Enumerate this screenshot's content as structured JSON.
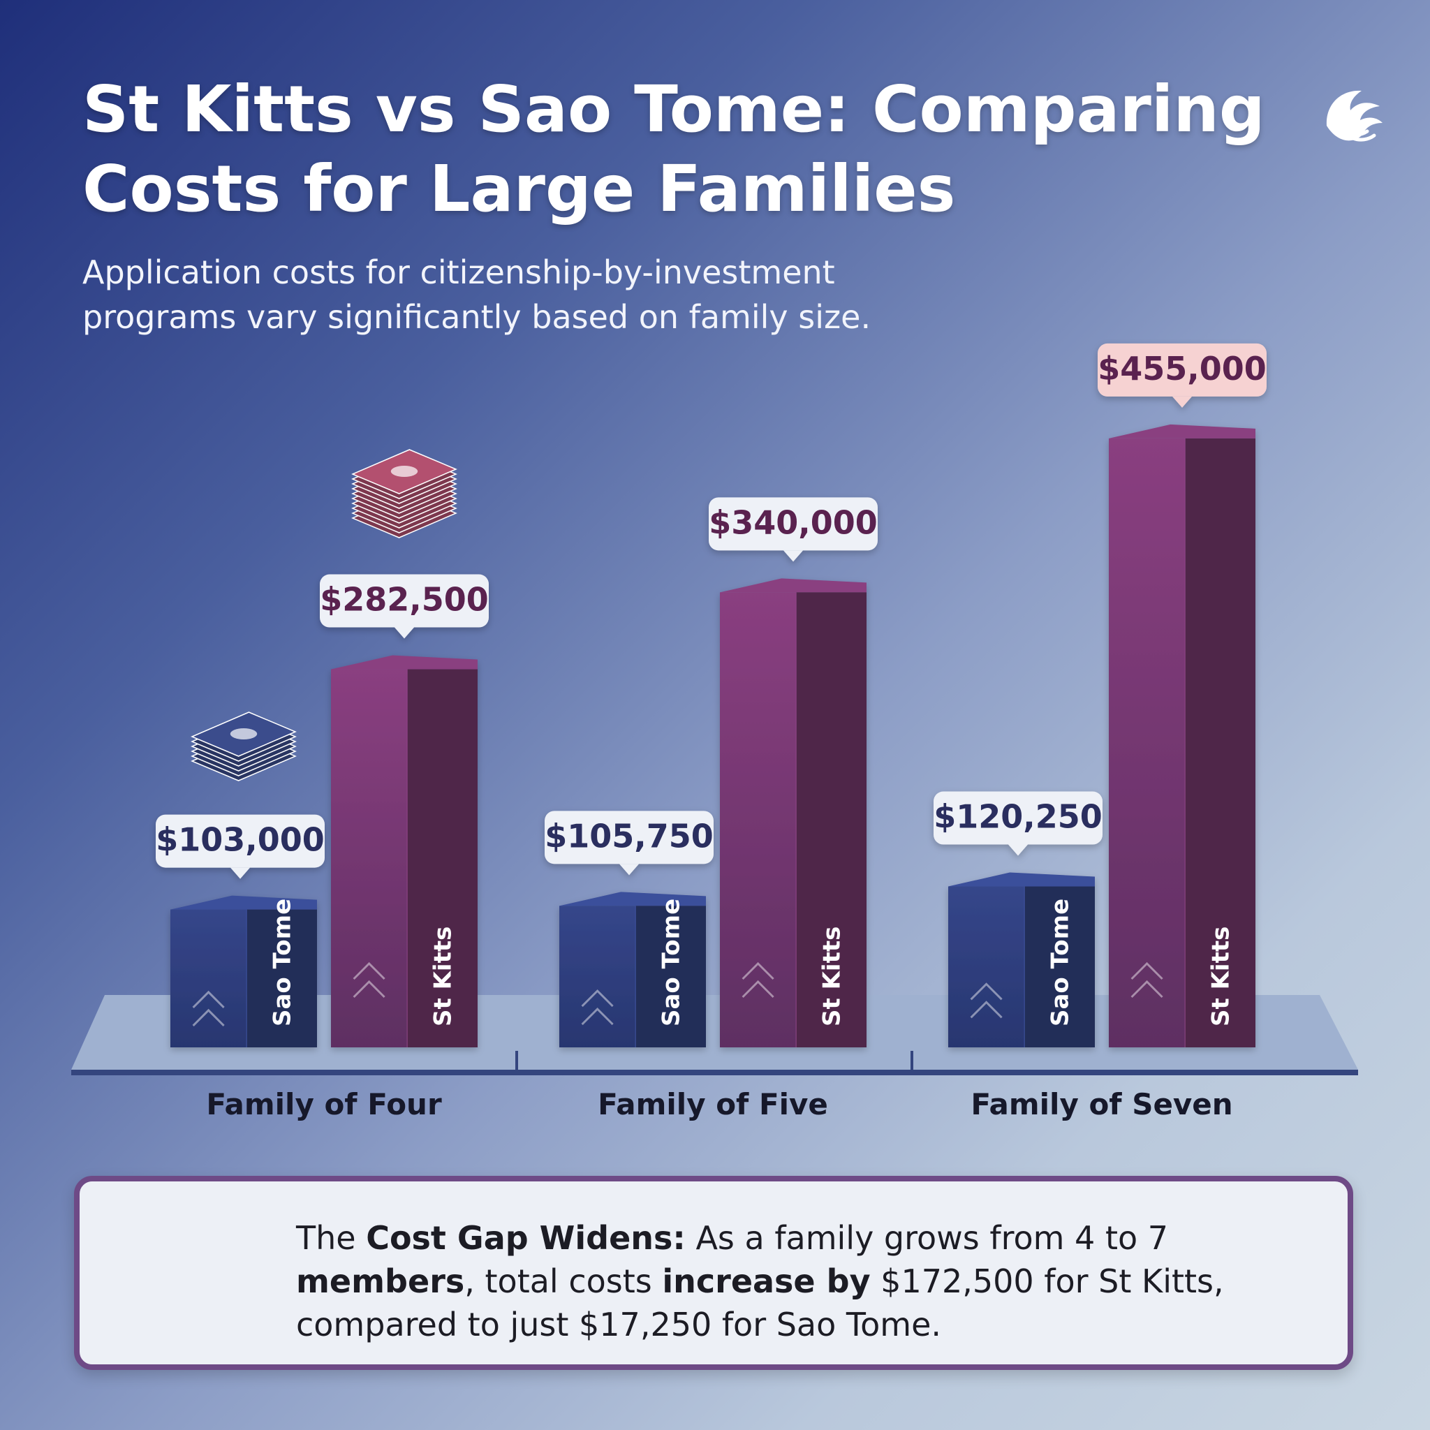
{
  "page": {
    "title_line1": "St Kitts vs Sao Tome: Comparing",
    "title_line2": "Costs for Large Families",
    "subtitle_line1": "Application costs for citizenship-by-investment",
    "subtitle_line2": "programs vary significantly based on family size.",
    "logo_icon": "wave-swirl-icon",
    "money_icon": "cash-stack-icon"
  },
  "colors": {
    "sao_tome": "#2f3f7c",
    "st_kitts": "#6e3366",
    "label_text_dark": "#2a2f5e",
    "label_text_purple": "#5a2450",
    "label_highlight_bg": "#f6d2d2"
  },
  "chart_data": {
    "type": "bar",
    "title": "St Kitts vs Sao Tome: Comparing Costs for Large Families",
    "categories": [
      "Family of Four",
      "Family of Five",
      "Family of Seven"
    ],
    "series": [
      {
        "name": "Sao Tome",
        "values": [
          103000,
          105750,
          120250
        ],
        "labels": [
          "$103,000",
          "$105,750",
          "$120,250"
        ]
      },
      {
        "name": "St Kitts",
        "values": [
          282500,
          340000,
          455000
        ],
        "labels": [
          "$282,500",
          "$340,000",
          "$455,000"
        ]
      }
    ],
    "ylim": [
      0,
      480000
    ],
    "grid": false,
    "legend": "none (series names on bars)"
  },
  "callout": {
    "t1": "The ",
    "b1": "Cost Gap Widens:",
    "t2": " As a family grows from 4 to 7 ",
    "b2": "members",
    "t3": ", total costs ",
    "b3": "increase by",
    "t4": " $172,500 for St Kitts, compared to just $17,250 for Sao Tome."
  }
}
